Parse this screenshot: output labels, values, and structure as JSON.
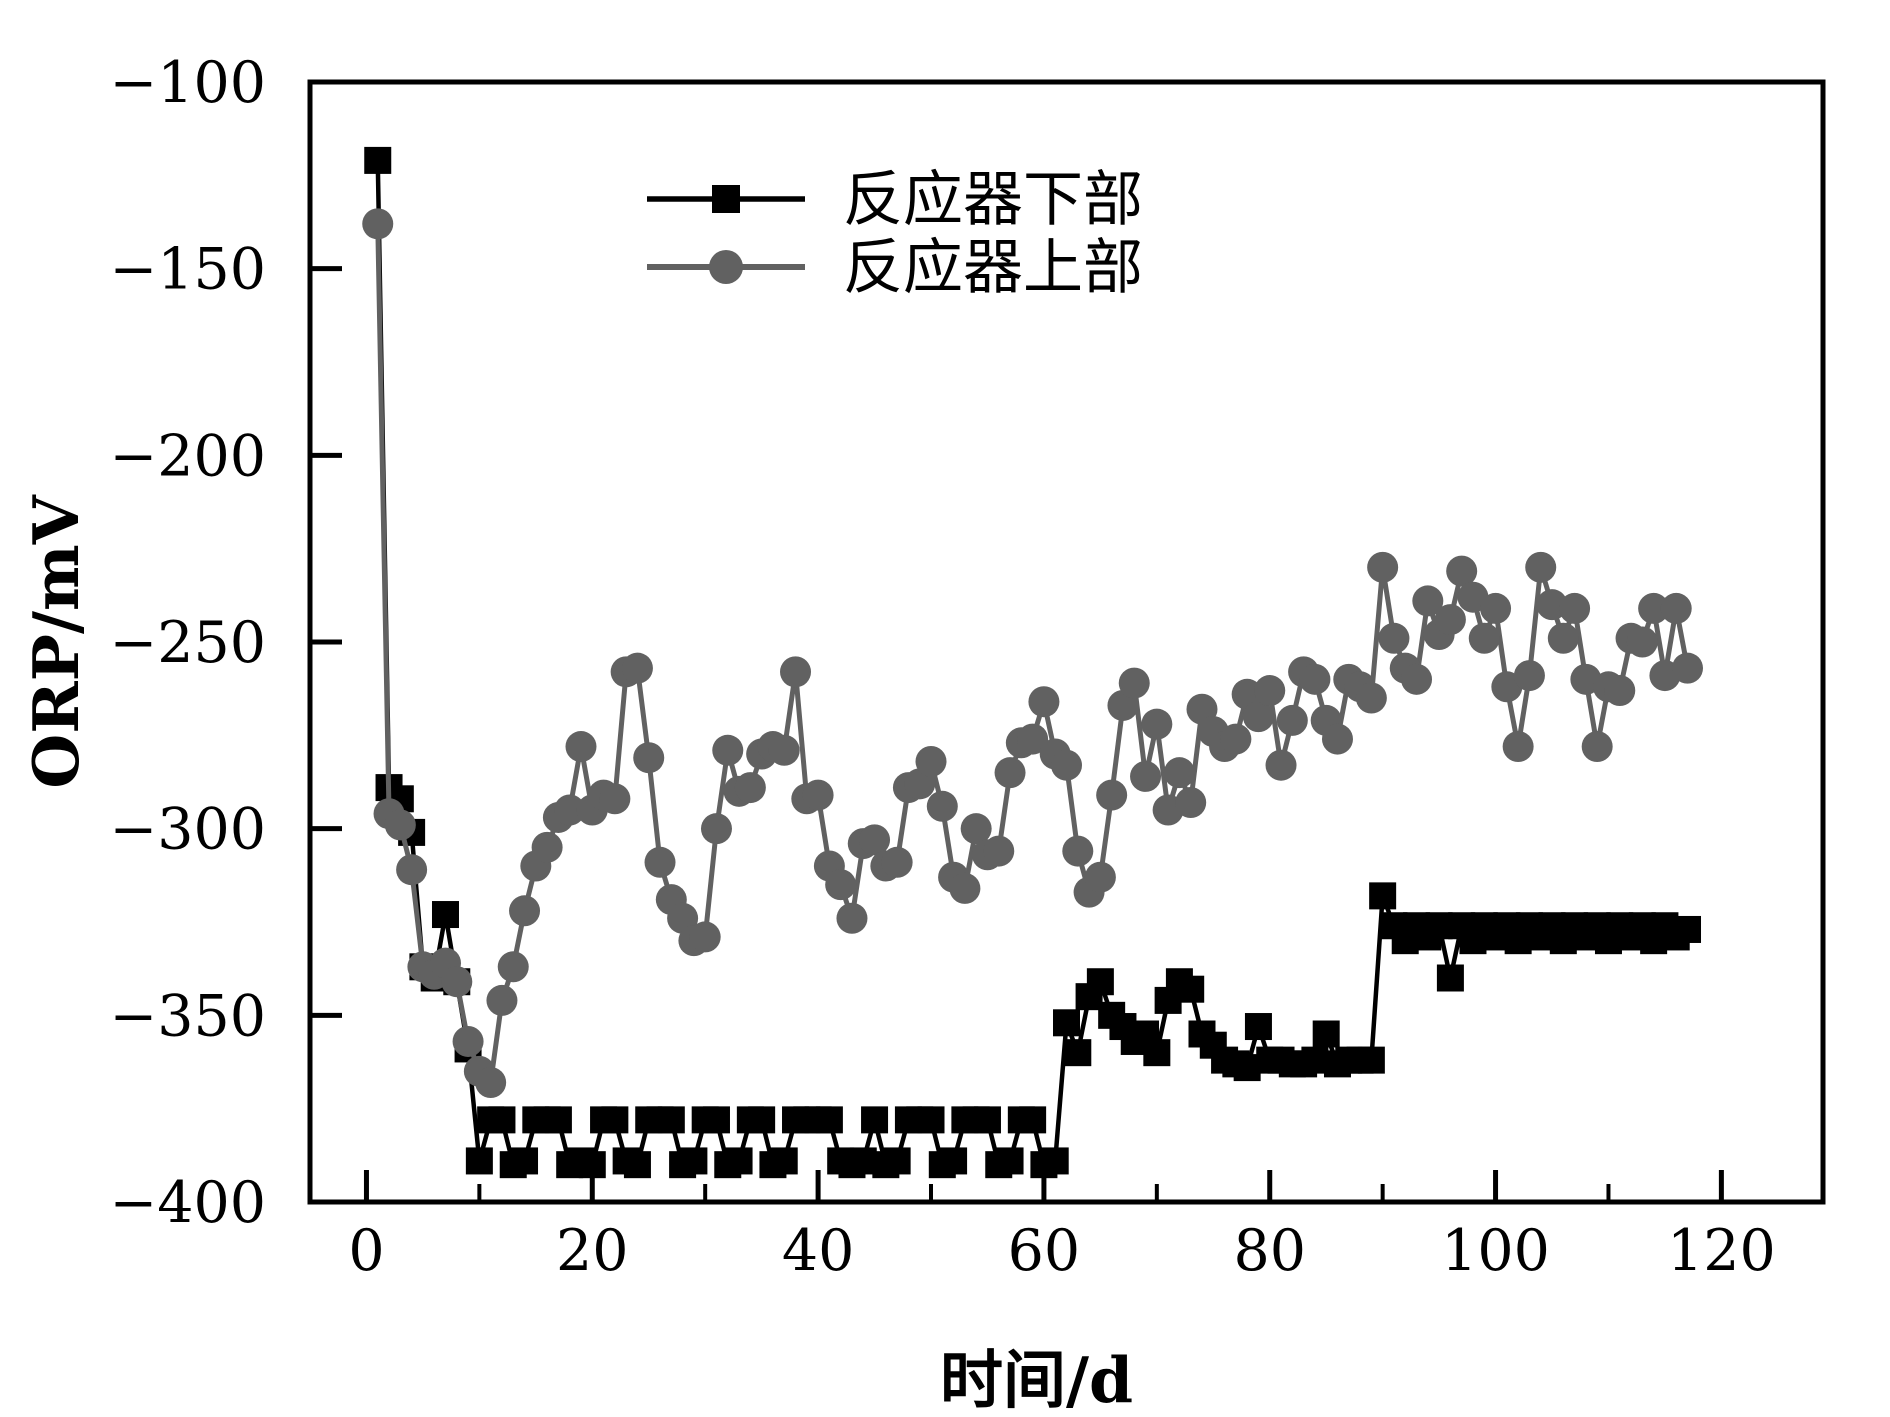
{
  "chart_data": {
    "type": "line",
    "title": "",
    "xlabel": "时间/d",
    "ylabel": "ORP/mV",
    "xlim": [
      -5,
      129
    ],
    "ylim": [
      -400,
      -100
    ],
    "grid": false,
    "legend_position": "upper-left-inside",
    "x_major_ticks": [
      0,
      20,
      40,
      60,
      80,
      100,
      120
    ],
    "x_minor_ticks": [
      10,
      30,
      50,
      70,
      90,
      110
    ],
    "x_tick_labels": [
      "0",
      "20",
      "40",
      "60",
      "80",
      "100",
      "120"
    ],
    "y_major_ticks": [
      -100,
      -150,
      -200,
      -250,
      -300,
      -350,
      -400
    ],
    "y_tick_labels": [
      "−100",
      "−150",
      "−200",
      "−250",
      "−300",
      "−350",
      "−400"
    ],
    "x": [
      1,
      2,
      3,
      4,
      5,
      6,
      7,
      8,
      9,
      10,
      11,
      12,
      13,
      14,
      15,
      16,
      17,
      18,
      19,
      20,
      21,
      22,
      23,
      24,
      25,
      26,
      27,
      28,
      29,
      30,
      31,
      32,
      33,
      34,
      35,
      36,
      37,
      38,
      39,
      40,
      41,
      42,
      43,
      44,
      45,
      46,
      47,
      48,
      49,
      50,
      51,
      52,
      53,
      54,
      55,
      56,
      57,
      58,
      59,
      60,
      61,
      62,
      63,
      64,
      65,
      66,
      67,
      68,
      69,
      70,
      71,
      72,
      73,
      74,
      75,
      76,
      77,
      78,
      79,
      80,
      81,
      82,
      83,
      84,
      85,
      86,
      87,
      88,
      89,
      90,
      91,
      92,
      93,
      94,
      95,
      96,
      97,
      98,
      99,
      100,
      101,
      102,
      103,
      104,
      105,
      106,
      107,
      108,
      109,
      110,
      111,
      112,
      113,
      114,
      115,
      116,
      117
    ],
    "series": [
      {
        "name": "反应器下部",
        "marker": "square",
        "color": "#000000",
        "values": [
          -121,
          -289,
          -292,
          -301,
          -337,
          -340,
          -323,
          -341,
          -359,
          -389,
          -378,
          -378,
          -390,
          -389,
          -378,
          -378,
          -378,
          -390,
          -389,
          -390,
          -378,
          -378,
          -389,
          -390,
          -378,
          -378,
          -378,
          -390,
          -389,
          -378,
          -378,
          -390,
          -389,
          -378,
          -378,
          -390,
          -389,
          -378,
          -378,
          -378,
          -378,
          -389,
          -390,
          -389,
          -378,
          -390,
          -389,
          -378,
          -378,
          -378,
          -390,
          -389,
          -378,
          -378,
          -378,
          -390,
          -389,
          -378,
          -378,
          -390,
          -389,
          -352,
          -360,
          -345,
          -341,
          -350,
          -353,
          -357,
          -355,
          -360,
          -346,
          -341,
          -343,
          -355,
          -358,
          -362,
          -363,
          -364,
          -353,
          -362,
          -362,
          -363,
          -363,
          -362,
          -355,
          -363,
          -362,
          -362,
          -362,
          -318,
          -326,
          -330,
          -326,
          -329,
          -326,
          -340,
          -326,
          -330,
          -326,
          -329,
          -326,
          -330,
          -326,
          -329,
          -326,
          -330,
          -326,
          -329,
          -326,
          -330,
          -326,
          -329,
          -326,
          -330,
          -326,
          -329,
          -327
        ]
      },
      {
        "name": "反应器上部",
        "marker": "circle",
        "color": "#616161",
        "values": [
          -138,
          -296,
          -299,
          -311,
          -337,
          -339,
          -336,
          -341,
          -357,
          -365,
          -368,
          -346,
          -337,
          -322,
          -310,
          -305,
          -297,
          -295,
          -278,
          -295,
          -291,
          -292,
          -258,
          -257,
          -281,
          -309,
          -319,
          -324,
          -330,
          -329,
          -300,
          -279,
          -290,
          -289,
          -280,
          -278,
          -279,
          -258,
          -292,
          -291,
          -310,
          -315,
          -324,
          -304,
          -303,
          -310,
          -309,
          -289,
          -288,
          -282,
          -294,
          -313,
          -316,
          -300,
          -307,
          -306,
          -285,
          -277,
          -276,
          -266,
          -280,
          -283,
          -306,
          -317,
          -313,
          -291,
          -267,
          -261,
          -286,
          -272,
          -295,
          -285,
          -293,
          -268,
          -274,
          -278,
          -276,
          -264,
          -270,
          -263,
          -283,
          -271,
          -258,
          -260,
          -271,
          -276,
          -260,
          -262,
          -265,
          -230,
          -249,
          -257,
          -260,
          -239,
          -248,
          -244,
          -231,
          -238,
          -249,
          -241,
          -262,
          -278,
          -259,
          -230,
          -240,
          -249,
          -241,
          -260,
          -278,
          -262,
          -263,
          -249,
          -250,
          -241,
          -259,
          -241,
          -257
        ]
      }
    ]
  }
}
